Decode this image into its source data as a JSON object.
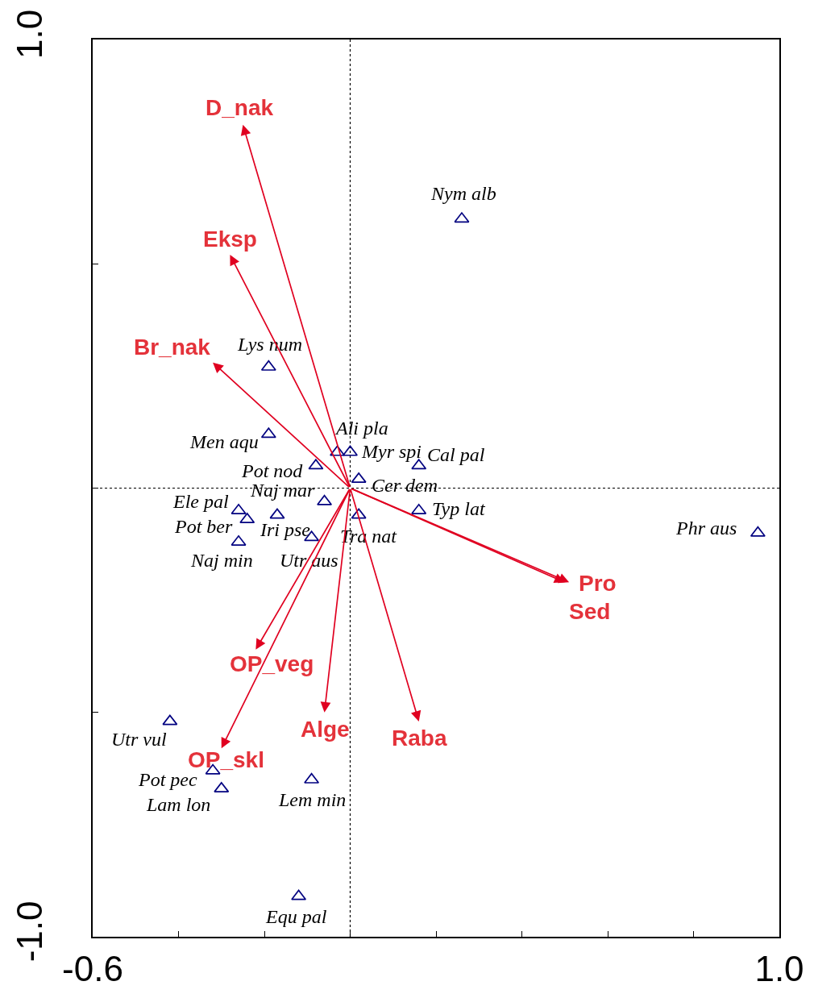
{
  "chart_data": {
    "type": "scatter",
    "xlim": [
      -0.6,
      1.0
    ],
    "ylim": [
      -1.0,
      1.0
    ],
    "xticks": [
      {
        "value": -0.6,
        "label": "-0.6"
      },
      {
        "value": -0.4,
        "label": null
      },
      {
        "value": -0.2,
        "label": null
      },
      {
        "value": 0,
        "label": null
      },
      {
        "value": 0.2,
        "label": null
      },
      {
        "value": 0.4,
        "label": null
      },
      {
        "value": 0.6,
        "label": null
      },
      {
        "value": 0.8,
        "label": null
      },
      {
        "value": 1.0,
        "label": "1.0"
      }
    ],
    "yticks": [
      {
        "value": 1.0,
        "label": "1.0"
      },
      {
        "value": 0.5,
        "label": null
      },
      {
        "value": 0,
        "label": null
      },
      {
        "value": -0.5,
        "label": null
      },
      {
        "value": -1.0,
        "label": "-1.0"
      }
    ],
    "grid": false,
    "series": [
      {
        "type": "scatter",
        "color": "#000080",
        "marker": "triangle",
        "x": [
          0.26,
          -0.19,
          -0.19,
          -0.03,
          0.0,
          0.16,
          -0.08,
          0.02,
          -0.06,
          0.16,
          0.02,
          0.95,
          -0.26,
          -0.24,
          -0.17,
          -0.09,
          -0.26,
          -0.42,
          -0.32,
          -0.3,
          -0.09,
          -0.12
        ],
        "values": [
          0.6,
          0.27,
          0.12,
          0.08,
          0.08,
          0.05,
          0.05,
          0.02,
          -0.03,
          -0.05,
          -0.06,
          -0.1,
          -0.05,
          -0.07,
          -0.06,
          -0.11,
          -0.12,
          -0.52,
          -0.63,
          -0.67,
          -0.65,
          -0.91
        ],
        "value_labels": [
          "Nym alb",
          "Lys num",
          "Men aqu",
          "Ali pla",
          "Myr spi",
          "Cal pal",
          "Pot nod",
          "Cer dem",
          "Naj mar",
          "Typ lat",
          "Tra nat",
          "Phr aus",
          "Ele pal",
          "Pot ber",
          "Iri pse",
          "Utr aus",
          "Naj min",
          "Utr vul",
          "Pot pec",
          "Lam lon",
          "Lem min",
          "Equ pal"
        ]
      }
    ],
    "annotations": [
      "D_nak",
      "Eksp",
      "Br_nak",
      "Pro",
      "Sed",
      "OP_veg",
      "OP_skl",
      "Alge",
      "Raba"
    ],
    "ref_lines": [
      {
        "axis": "x",
        "value": 0,
        "line_style": "dotted",
        "color": "#000000"
      },
      {
        "axis": "y",
        "value": 0,
        "line_style": "dotted",
        "color": "#000000"
      }
    ]
  }
}
